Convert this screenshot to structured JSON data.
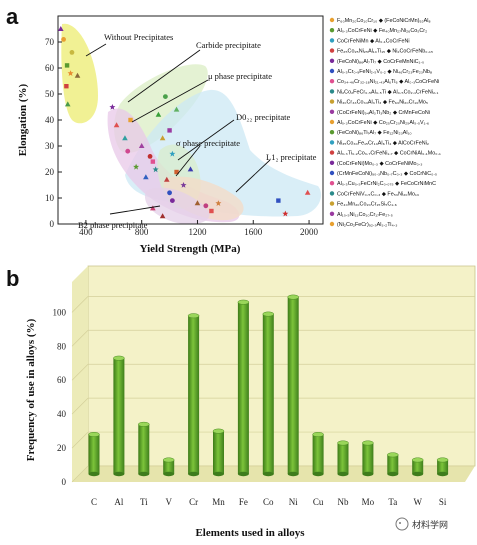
{
  "panel_a_label": "a",
  "panel_b_label": "b",
  "watermark": "材料学网",
  "chart_data": [
    {
      "type": "scatter",
      "xlabel": "Yield Strength (MPa)",
      "ylabel": "Elongation (%)",
      "xlim": [
        200,
        2100
      ],
      "ylim": [
        0,
        80
      ],
      "xticks": [
        400,
        800,
        1200,
        1600,
        2000
      ],
      "yticks": [
        0,
        10,
        20,
        30,
        40,
        50,
        60,
        70
      ],
      "regions": [
        {
          "name": "Without Precipitates",
          "color": "#ecec70"
        },
        {
          "name": "Carbide precipitate",
          "color": "#d8ecc0"
        },
        {
          "name": "μ phase precipitate",
          "color": "#e8c8e8"
        },
        {
          "name": "D0₂₂ precipitate",
          "color": "#d8eccc"
        },
        {
          "name": "σ phase precipitate",
          "color": "#f2dcc8"
        },
        {
          "name": "L1₂ precipitate",
          "color": "#cce8f4"
        },
        {
          "name": "B2 phase precipitate",
          "color": "#e4d0e8"
        }
      ],
      "annotations": [
        "Without Precipitates",
        "Carbide precipitate",
        "μ phase precipitate",
        "D0₂₂ precipitate",
        "σ phase precipitate",
        "L1₂ precipitate",
        "B2 phase precipitate"
      ],
      "points": [
        {
          "x": 220,
          "y": 75,
          "color": "#7a2a9a"
        },
        {
          "x": 240,
          "y": 71,
          "color": "#e8a030"
        },
        {
          "x": 265,
          "y": 61,
          "color": "#5a9a30"
        },
        {
          "x": 290,
          "y": 58,
          "color": "#e88c30"
        },
        {
          "x": 340,
          "y": 57,
          "color": "#8a6a3a"
        },
        {
          "x": 270,
          "y": 46,
          "color": "#4a9a4a"
        },
        {
          "x": 300,
          "y": 66,
          "color": "#c8b840"
        },
        {
          "x": 260,
          "y": 53,
          "color": "#d04040"
        },
        {
          "x": 590,
          "y": 45,
          "color": "#7a2a9a"
        },
        {
          "x": 620,
          "y": 38,
          "color": "#e05050"
        },
        {
          "x": 680,
          "y": 33,
          "color": "#30a0a0"
        },
        {
          "x": 700,
          "y": 28,
          "color": "#d04890"
        },
        {
          "x": 720,
          "y": 40,
          "color": "#e8a030"
        },
        {
          "x": 760,
          "y": 22,
          "color": "#5a9a30"
        },
        {
          "x": 800,
          "y": 30,
          "color": "#a040a0"
        },
        {
          "x": 830,
          "y": 18,
          "color": "#3060c0"
        },
        {
          "x": 860,
          "y": 26,
          "color": "#c03030"
        },
        {
          "x": 880,
          "y": 24,
          "color": "#e05090"
        },
        {
          "x": 900,
          "y": 21,
          "color": "#2a8a8a"
        },
        {
          "x": 920,
          "y": 42,
          "color": "#3aa03a"
        },
        {
          "x": 950,
          "y": 33,
          "color": "#c8a030"
        },
        {
          "x": 970,
          "y": 49,
          "color": "#4aa04a"
        },
        {
          "x": 1000,
          "y": 36,
          "color": "#9a3aa0"
        },
        {
          "x": 1020,
          "y": 27,
          "color": "#30a0c0"
        },
        {
          "x": 1050,
          "y": 44,
          "color": "#60b060"
        },
        {
          "x": 980,
          "y": 17,
          "color": "#c04040"
        },
        {
          "x": 1000,
          "y": 12,
          "color": "#3050c0"
        },
        {
          "x": 1050,
          "y": 20,
          "color": "#d06030"
        },
        {
          "x": 1100,
          "y": 15,
          "color": "#7a3a9a"
        },
        {
          "x": 1150,
          "y": 21,
          "color": "#3a3ab0"
        },
        {
          "x": 1200,
          "y": 8,
          "color": "#a06030"
        },
        {
          "x": 1260,
          "y": 7,
          "color": "#c04080"
        },
        {
          "x": 1300,
          "y": 5,
          "color": "#e05050"
        },
        {
          "x": 1350,
          "y": 8,
          "color": "#d08040"
        },
        {
          "x": 880,
          "y": 6,
          "color": "#c84070"
        },
        {
          "x": 950,
          "y": 3,
          "color": "#a03030"
        },
        {
          "x": 1020,
          "y": 9,
          "color": "#7a2a9a"
        },
        {
          "x": 1780,
          "y": 9,
          "color": "#3050c0"
        },
        {
          "x": 1830,
          "y": 4,
          "color": "#d03030"
        },
        {
          "x": 1990,
          "y": 12,
          "color": "#e05050"
        }
      ],
      "legend": [
        "F₆₀Mn₂₀Co₁₀Cr₁₀ ◆ (FeCoNiCrMn)₉₂Al₈",
        "Al₀.₃CoCrFeNi ◆ Fe₄₀Mn₂₇Ni₂₆Co₅Cr₂",
        "CoCrFeNiMn ◆ Al₀.₁CoCrFeNi",
        "Fe₂₅Co₂₅Ni₂₅Al₁₀Ti₁₅ ◆ Ni₂CoCrFeNb₀.₁₅",
        "(FeCoNi)₈₆Al₇Ti₇ ◆ CoCrFeMnNiC₁.₀",
        "Al₀.₅Cr₀.₉FeNi₂.₅V₀.₂ ◆ Ni₄₆Cr₂₃Fe₂₃Nb₈",
        "Co₃₄.₄₆Cr₃₂.₁₈Ni₂₁.₄₁Al₆Ti₆ ◆ Al₀.₃CoCrFeNi",
        "Ni₂Co₂FeCr₀.₅Al₀.₅Ti ◆ Al₀.₅Co₂.₁CrFeNi₂.₁",
        "Ni₃₀Cr₃₃Co₃₃Al₃Ti₃ ◆ Fe₆₀Ni₂₀Cr₁₀Mo₅",
        "(CoCrFeNi)₉₄Al₃Ti₃Nb₂ ◆ CrMnFeCoNi",
        "Al₀.₃CoCrFeNi ◆ Co₂₅Cr₂₀Ni₂₅Al₅.₅V₁.₆",
        "(FeCoNi)₈₆Ti₇Al₇ ◆ Fe₁₂Ni₂₃Al₁₀",
        "Ni₃₅Co₃₀Fe₁₅Cr₁₀Al₆Ti₄ ◆ AlCoCrFeNi₂",
        "Al₀.₃Ti₀.₂Co₀.₇CrFeNi₁.₇ ◆ CoCrNiAl₀.₁Mo₀.₁",
        "(CoCrFeNi)Mo₀.₃ ◆ CoCrFeNiMo₀.₃",
        "(CrMnFeCoNi)₉₀.₃Nb₀.₇C₀.₃ ◆ CoCrNiC₀.₅",
        "Al₀.₅Cu₀.₅FeCrNi₂C₀.₀₇₅ ◆ FeCoCrNiMnC",
        "CoCrFeNiV₀.₅C₀.₃ ◆ Fe₅₀Ni₂₀Mo₁₀",
        "Fe₄₀Mn₂₀Co₂₀Cr₁₅Si₅C₁.₆",
        "Al₁₀.₅Ni₁₃Co₁₀Cr₁₇Fe₂₇.₅",
        "(Ni₂Co₂FeCr)₉₂.₅Al₃.₂Ti₄.₃"
      ]
    },
    {
      "type": "bar",
      "xlabel": "Elements used in alloys",
      "ylabel": "Frequency of use in alloys (%)",
      "ylim": [
        0,
        112
      ],
      "yticks": [
        0,
        20,
        40,
        60,
        80,
        100
      ],
      "categories": [
        "C",
        "Al",
        "Ti",
        "V",
        "Cr",
        "Mn",
        "Fe",
        "Co",
        "Ni",
        "Cu",
        "Nb",
        "Mo",
        "Ta",
        "W",
        "Si"
      ],
      "values": [
        28,
        73,
        34,
        13,
        98,
        30,
        106,
        99,
        109,
        28,
        23,
        23,
        16,
        13,
        13
      ],
      "bar_color": "#5fa82a"
    }
  ]
}
